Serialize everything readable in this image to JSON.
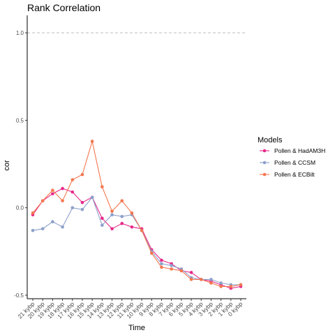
{
  "chart_data": {
    "type": "line",
    "title": "Rank Correlation",
    "xlabel": "Time",
    "ylabel": "cor",
    "categories": [
      "21 kybp",
      "20 kybp",
      "19 kybp",
      "18 kybp",
      "17 kybp",
      "16 kybp",
      "15 kybp",
      "14 kybp",
      "13 kybp",
      "12 kybp",
      "11 kybp",
      "10 kybp",
      "9 kybp",
      "8 kybp",
      "7 kybp",
      "6 kybp",
      "5 kybp",
      "4 kybp",
      "3 kybp",
      "2 kybp",
      "1 kybp",
      "0 kybp"
    ],
    "ylim": [
      -0.52,
      1.1
    ],
    "yticks": [
      -0.5,
      0.0,
      0.5,
      1.0
    ],
    "ytick_labels": [
      "-0.5",
      "0.0",
      "0.5",
      "1.0"
    ],
    "reference_line": 1.0,
    "legend_title": "Models",
    "legend_position": "right",
    "grid": false,
    "series": [
      {
        "name": "Pollen & HadAM3H",
        "color": "#e7298a",
        "values": [
          -0.04,
          0.04,
          0.08,
          0.11,
          0.09,
          0.03,
          0.06,
          -0.06,
          -0.12,
          -0.09,
          -0.11,
          -0.12,
          -0.24,
          -0.3,
          -0.32,
          -0.36,
          -0.37,
          -0.41,
          -0.42,
          -0.44,
          -0.46,
          -0.45
        ]
      },
      {
        "name": "Pollen & CCSM",
        "color": "#8da0cb",
        "values": [
          -0.13,
          -0.12,
          -0.08,
          -0.11,
          0.0,
          -0.01,
          0.06,
          -0.1,
          -0.04,
          -0.05,
          -0.04,
          -0.13,
          -0.25,
          -0.32,
          -0.33,
          -0.35,
          -0.4,
          -0.41,
          -0.41,
          -0.43,
          -0.44,
          -0.44
        ]
      },
      {
        "name": "Pollen & ECBilt",
        "color": "#f4774f",
        "values": [
          -0.03,
          0.04,
          0.1,
          0.04,
          0.16,
          0.19,
          0.38,
          0.12,
          -0.02,
          0.04,
          -0.03,
          -0.13,
          -0.26,
          -0.34,
          -0.35,
          -0.36,
          -0.41,
          -0.41,
          -0.43,
          -0.45,
          -0.45,
          -0.44
        ]
      }
    ]
  }
}
